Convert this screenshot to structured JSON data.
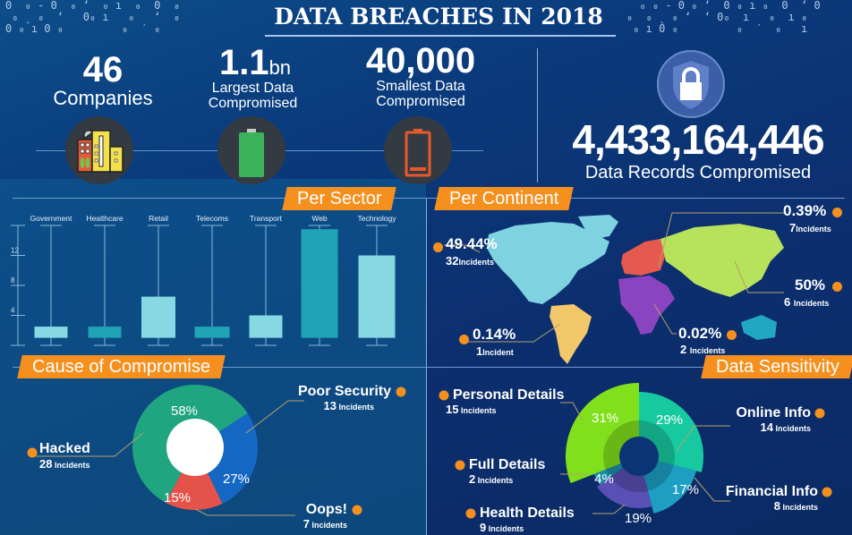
{
  "header": {
    "title": "DATA BREACHES IN 2018"
  },
  "stats": {
    "companies": {
      "value": "46",
      "label": "Companies",
      "icon": "buildings-icon"
    },
    "largest": {
      "value": "1.1",
      "unit": "bn",
      "label_line1": "Largest Data",
      "label_line2": "Compromised",
      "icon": "full-battery-icon"
    },
    "smallest": {
      "value": "40,000",
      "label_line1": "Smallest Data",
      "label_line2": "Compromised",
      "icon": "low-battery-icon"
    },
    "records": {
      "value": "4,433,164,446",
      "label": "Data Records Compromised",
      "icon": "shield-lock-icon"
    }
  },
  "sections": {
    "per_sector": "Per Sector",
    "per_continent": "Per Continent",
    "cause": "Cause of Compromise",
    "sensitivity": "Data Sensitivity"
  },
  "colors": {
    "accent": "#f5901e",
    "bar_light": "#86d8e2",
    "bar_dark": "#1fa3b5"
  },
  "continents": [
    {
      "name": "North America",
      "pct": "49.44%",
      "count": "32",
      "unit": "Incidents",
      "color": "#7fd3e0"
    },
    {
      "name": "South America",
      "pct": "0.14%",
      "count": "1",
      "unit": "Incident",
      "color": "#f3c86b"
    },
    {
      "name": "Europe",
      "pct": "0.39%",
      "count": "7",
      "unit": "Incidents",
      "color": "#e5594e"
    },
    {
      "name": "Asia",
      "pct": "50%",
      "count": "6",
      "unit": "Incidents",
      "color": "#b7e25c"
    },
    {
      "name": "Africa",
      "pct": "0.02%",
      "count": "2",
      "unit": "Incidents",
      "color": "#8a44c0"
    },
    {
      "name": "Oceania",
      "pct": "",
      "count": "",
      "unit": "",
      "color": "#22a7c1"
    }
  ],
  "chart_data": [
    {
      "type": "bar",
      "title": "Per Sector",
      "categories": [
        "Government",
        "Healthcare",
        "Retail",
        "Telecoms",
        "Transport",
        "Web",
        "Technology"
      ],
      "values": [
        2.5,
        2.5,
        6.5,
        2.5,
        4,
        15.5,
        12
      ],
      "baseline": 1,
      "colors": [
        "#86d8e2",
        "#1fa3b5",
        "#86d8e2",
        "#1fa3b5",
        "#86d8e2",
        "#1fa3b5",
        "#86d8e2"
      ],
      "ylim": [
        0,
        16
      ],
      "yticks": [
        "4",
        "8",
        "12"
      ],
      "xlabel": "",
      "ylabel": ""
    },
    {
      "type": "pie",
      "title": "Cause of Compromise",
      "slices": [
        {
          "label": "Poor Security",
          "pct": "27%",
          "value": 27,
          "incidents": "13",
          "color": "#1468c4"
        },
        {
          "label": "Oops!",
          "pct": "15%",
          "value": 15,
          "incidents": "7",
          "color": "#e5524a"
        },
        {
          "label": "Hacked",
          "pct": "58%",
          "value": 58,
          "incidents": "28",
          "color": "#1fa57f"
        }
      ],
      "incidents_unit": "Incidents"
    },
    {
      "type": "pie",
      "subtype": "polar-area",
      "title": "Data Sensitivity",
      "slices": [
        {
          "label": "Online Info",
          "pct": "29%",
          "value": 29,
          "incidents": "14",
          "color": "#17c9a0"
        },
        {
          "label": "Financial Info",
          "pct": "17%",
          "value": 17,
          "incidents": "8",
          "color": "#1d9fc4"
        },
        {
          "label": "Health Details",
          "pct": "19%",
          "value": 19,
          "incidents": "9",
          "color": "#5a4fb5"
        },
        {
          "label": "Full Details",
          "pct": "4%",
          "value": 4,
          "incidents": "2",
          "color": "#1c8fa8"
        },
        {
          "label": "Personal Details",
          "pct": "31%",
          "value": 31,
          "incidents": "15",
          "color": "#80e01c"
        }
      ],
      "incidents_unit": "Incidents"
    }
  ]
}
